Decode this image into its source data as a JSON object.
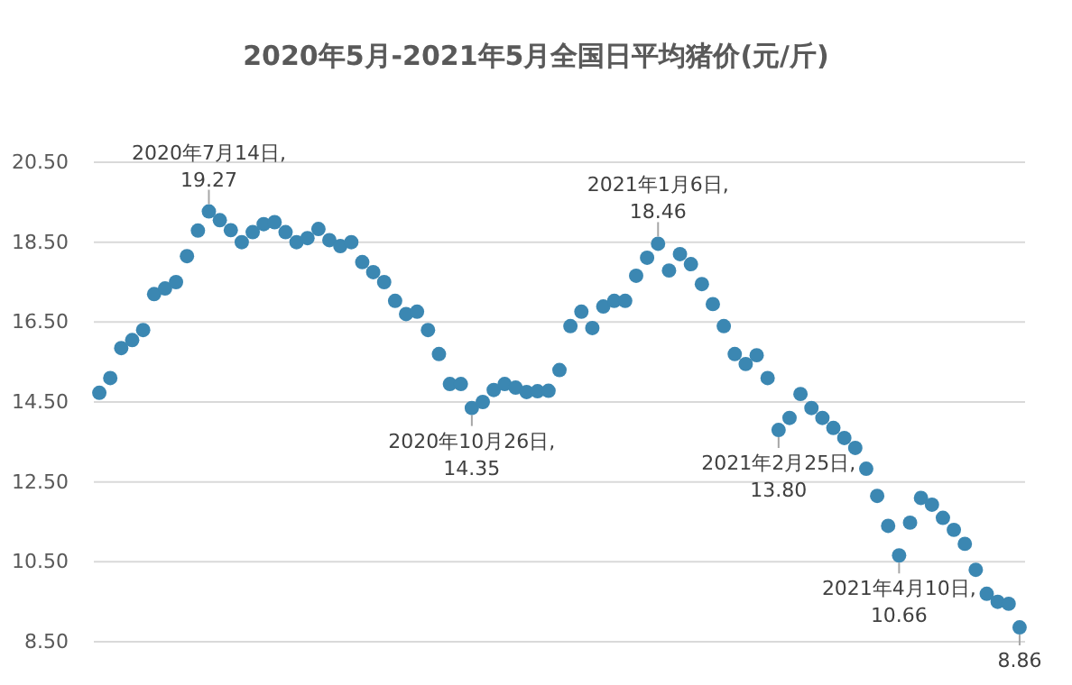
{
  "chart_data": {
    "type": "scatter",
    "title": "2020年5月-2021年5月全国日平均猪价(元/斤)",
    "categories": [
      null,
      null,
      null,
      null,
      null,
      null,
      null,
      null,
      null,
      null,
      null,
      null,
      null,
      null,
      null,
      null,
      null,
      null,
      null,
      null,
      null,
      null,
      null,
      null,
      null,
      null,
      null,
      null,
      null,
      null,
      null,
      null,
      null,
      null,
      null,
      null,
      null,
      null,
      null,
      null,
      null,
      null,
      null,
      null,
      null,
      null,
      null,
      null,
      null,
      null,
      null,
      null,
      null,
      null,
      null,
      null,
      null,
      null,
      null,
      null,
      null,
      null,
      null,
      null,
      null,
      null,
      null,
      null,
      null,
      null,
      null,
      null,
      null,
      null,
      null,
      null,
      null,
      null,
      null,
      null,
      null,
      null,
      null,
      null,
      null
    ],
    "series": [
      {
        "color": "#3b87b2",
        "values": [
          14.73,
          15.1,
          15.85,
          16.05,
          16.3,
          17.2,
          17.34,
          17.5,
          18.15,
          18.79,
          19.27,
          19.05,
          18.8,
          18.5,
          18.75,
          18.95,
          19.0,
          18.75,
          18.5,
          18.6,
          18.83,
          18.55,
          18.4,
          18.5,
          18.0,
          17.75,
          17.5,
          17.03,
          16.7,
          16.76,
          16.3,
          15.7,
          14.95,
          14.95,
          14.35,
          14.5,
          14.8,
          14.95,
          14.86,
          14.75,
          14.77,
          14.78,
          15.3,
          16.4,
          16.76,
          16.35,
          16.89,
          17.03,
          17.03,
          17.66,
          18.11,
          18.46,
          17.79,
          18.2,
          17.95,
          17.45,
          16.95,
          16.4,
          15.7,
          15.45,
          15.67,
          15.1,
          13.8,
          14.1,
          14.7,
          14.35,
          14.1,
          13.85,
          13.6,
          13.35,
          12.83,
          12.15,
          11.4,
          10.66,
          11.48,
          12.1,
          11.93,
          11.6,
          11.3,
          10.95,
          10.3,
          9.7,
          9.5,
          9.45,
          8.86
        ],
        "value_labels": [
          null,
          null,
          null,
          null,
          null,
          null,
          null,
          null,
          null,
          null,
          "2020年7月14日, 19.27",
          null,
          null,
          null,
          null,
          null,
          null,
          null,
          null,
          null,
          null,
          null,
          null,
          null,
          null,
          null,
          null,
          null,
          null,
          null,
          null,
          null,
          null,
          null,
          "2020年10月26日, 14.35",
          null,
          null,
          null,
          null,
          null,
          null,
          null,
          null,
          null,
          null,
          null,
          null,
          null,
          null,
          null,
          null,
          "2021年1月6日, 18.46",
          null,
          null,
          null,
          null,
          null,
          null,
          null,
          null,
          null,
          null,
          "2021年2月25日, 13.80",
          null,
          null,
          null,
          null,
          null,
          null,
          null,
          null,
          null,
          null,
          "2021年4月10日, 10.66",
          null,
          null,
          null,
          null,
          null,
          null,
          null,
          null,
          null,
          null,
          "8.86"
        ]
      }
    ],
    "ylim": [
      8.5,
      20.5
    ],
    "yticks": [
      {
        "value": 8.5,
        "label": "8.50"
      },
      {
        "value": 10.5,
        "label": "10.50"
      },
      {
        "value": 12.5,
        "label": "12.50"
      },
      {
        "value": 14.5,
        "label": "14.50"
      },
      {
        "value": 16.5,
        "label": "16.50"
      },
      {
        "value": 18.5,
        "label": "18.50"
      },
      {
        "value": 20.5,
        "label": "20.50"
      }
    ],
    "grid": "y",
    "marker": "circle",
    "tick_labels": "y"
  }
}
